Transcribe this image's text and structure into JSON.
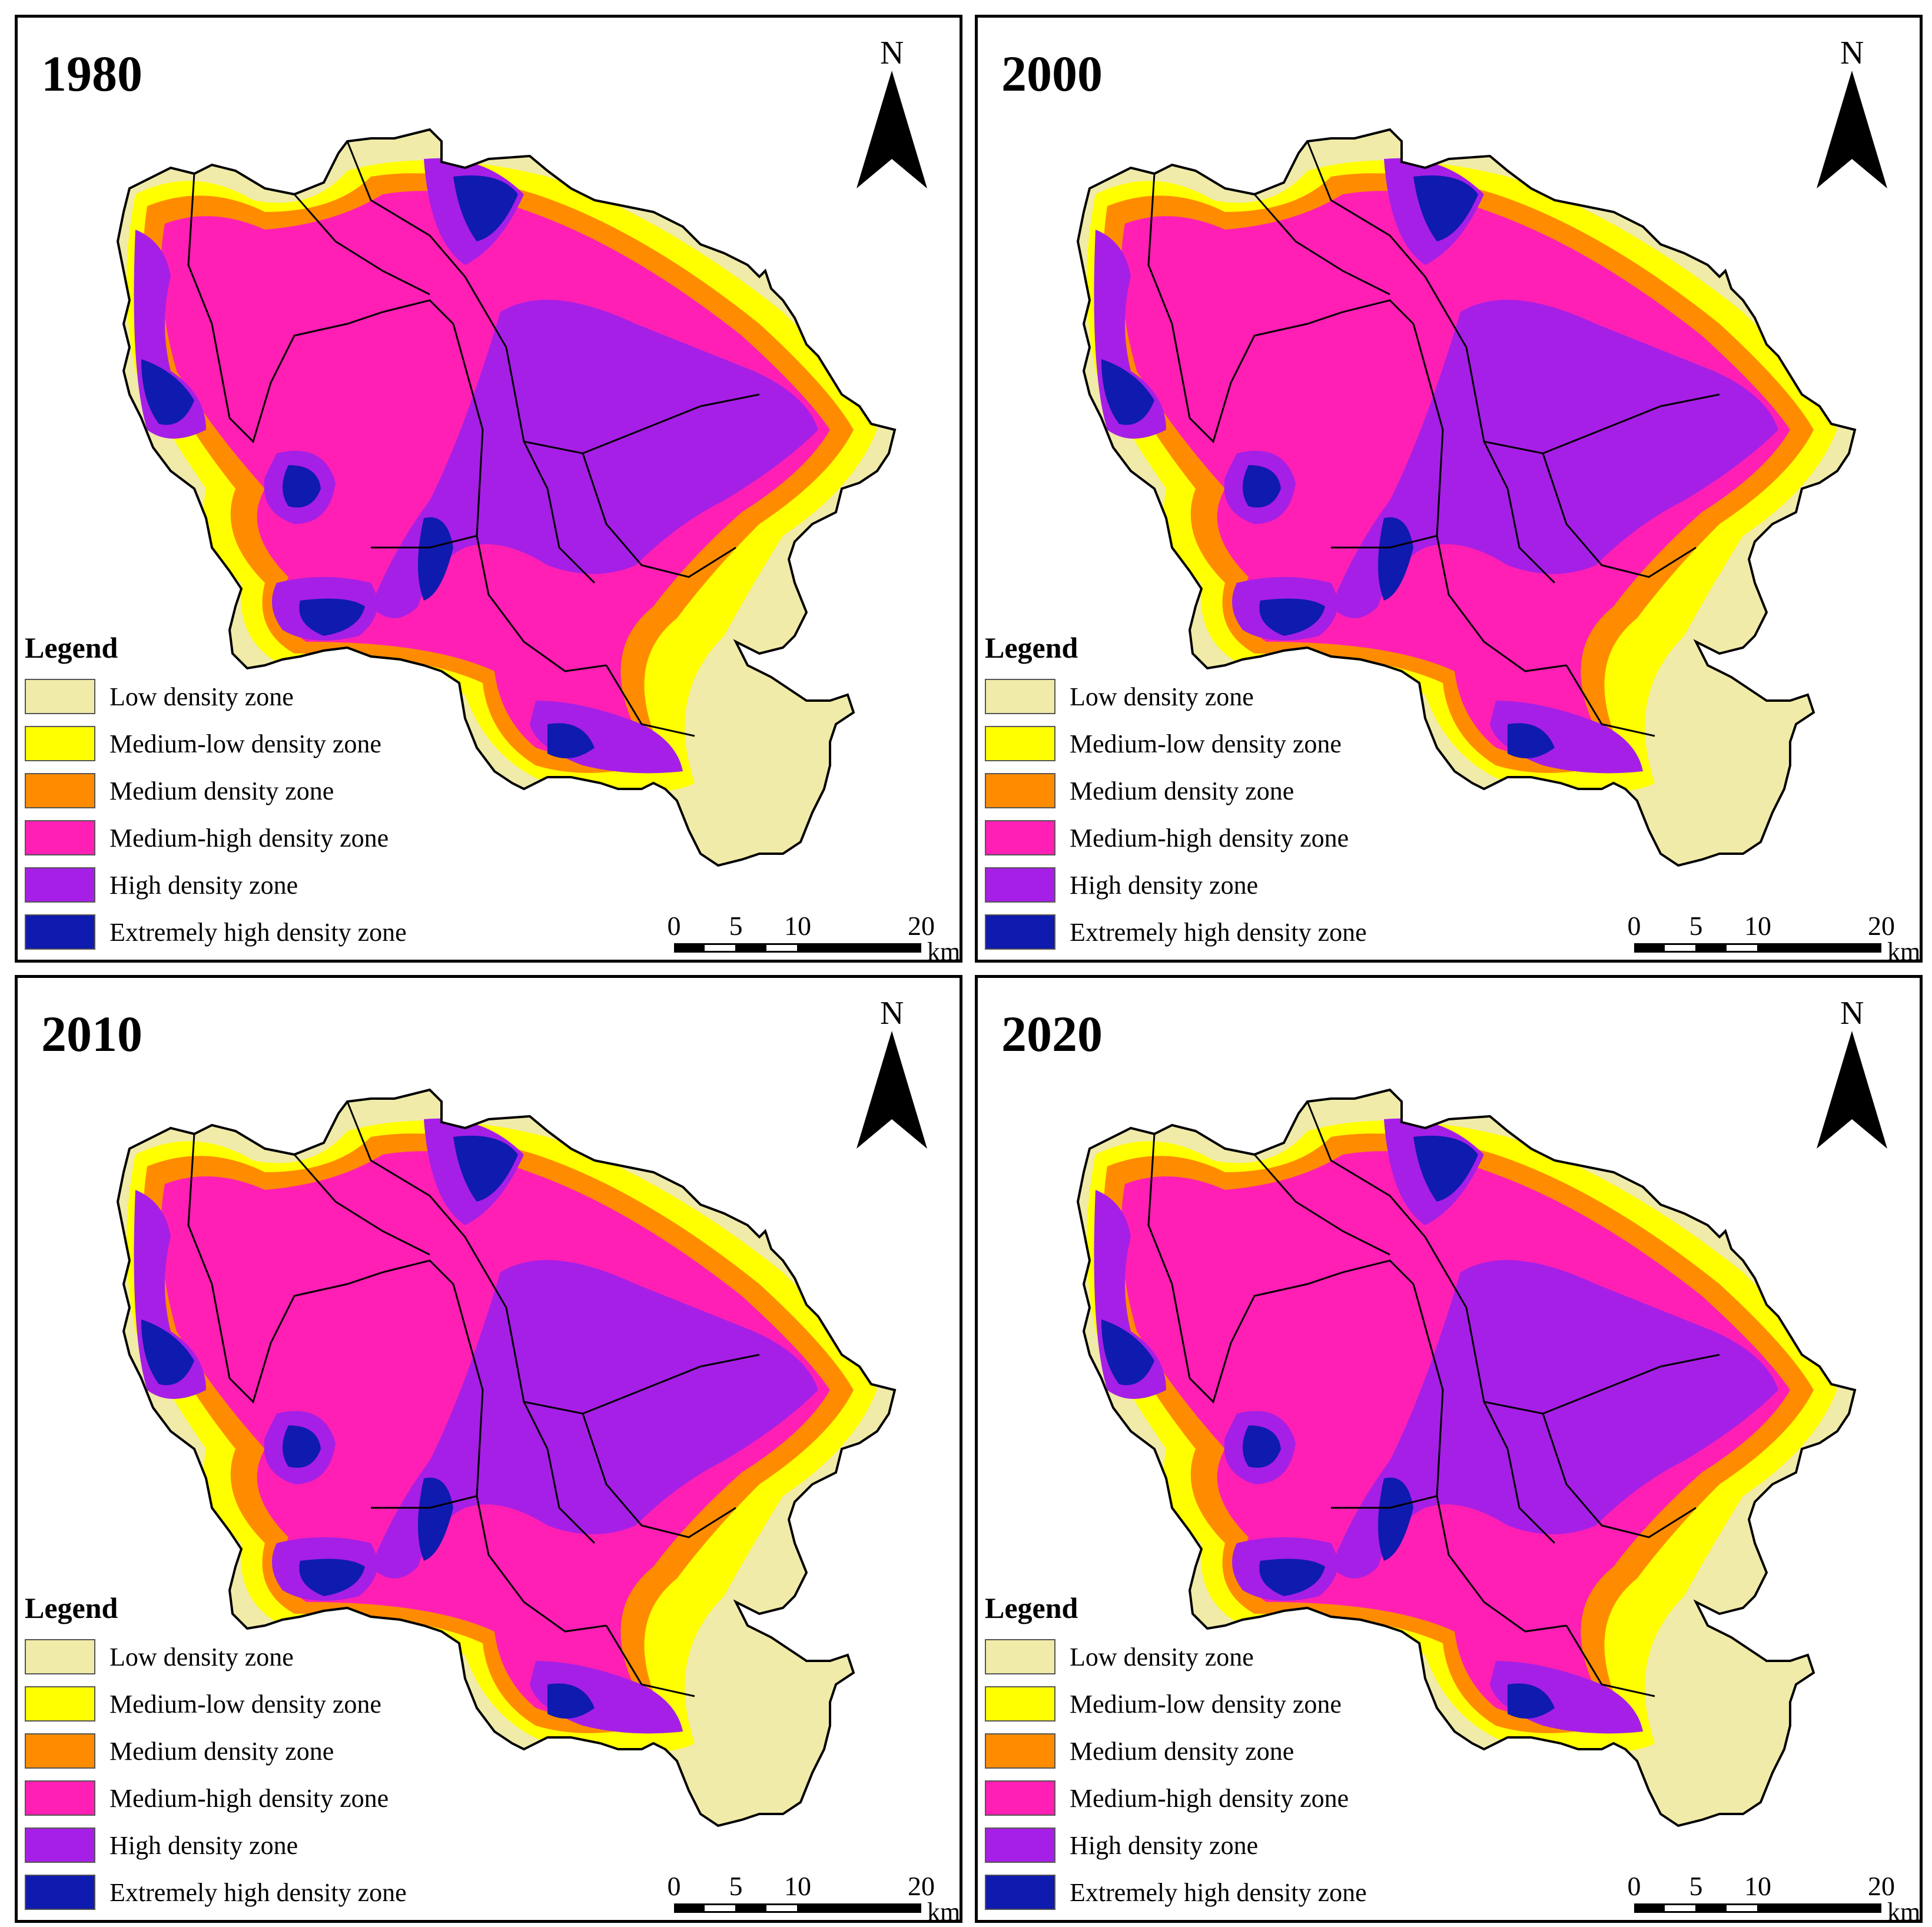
{
  "panels": [
    {
      "year": "1980"
    },
    {
      "year": "2000"
    },
    {
      "year": "2010"
    },
    {
      "year": "2020"
    }
  ],
  "north_label": "N",
  "legend": {
    "title": "Legend",
    "items": [
      {
        "label": "Low density zone",
        "color": "#F0EBA8"
      },
      {
        "label": "Medium-low density zone",
        "color": "#FFFF00"
      },
      {
        "label": "Medium density zone",
        "color": "#FF8C00"
      },
      {
        "label": "Medium-high density zone",
        "color": "#FF1FB4"
      },
      {
        "label": "High density zone",
        "color": "#A61FE6"
      },
      {
        "label": "Extremely high density zone",
        "color": "#0F1AAF"
      }
    ]
  },
  "scale": {
    "ticks": [
      "0",
      "5",
      "10",
      "20"
    ],
    "unit": "km"
  }
}
